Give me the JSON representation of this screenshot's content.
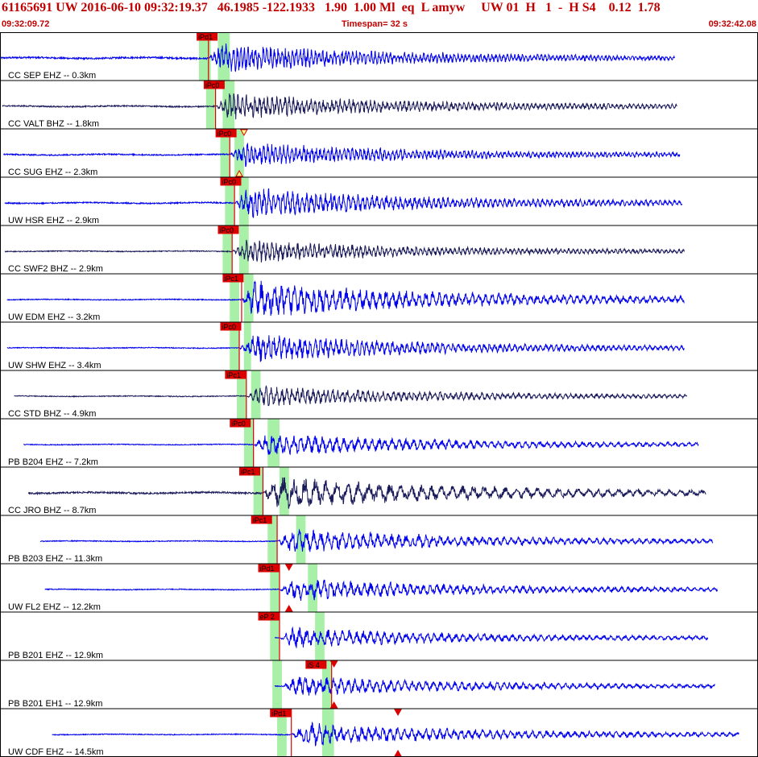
{
  "header": {
    "title": "61165691 UW 2016-06-10 09:32:19.37   46.1985 -122.1933   1.90  1.00 Ml  eq  L amyw     UW 01  H   1  -  H S4    0.12  1.78",
    "start_time": "09:32:09.72",
    "timespan": "Timespan=  32 s",
    "end_time": "09:32:42.08"
  },
  "colors": {
    "trace_blue": "#0000ee",
    "trace_dark": "#1a1a5a",
    "pick_red": "#dd0000",
    "window_green": "#a8f0a8"
  },
  "chart_data": {
    "type": "line",
    "title": "",
    "xlabel": "",
    "ylabel": "",
    "xlim": [
      0,
      32
    ],
    "grid": false,
    "legend": "none",
    "traces": [
      {
        "label": "CC SEP EHZ -- 0.3km",
        "color": "blue",
        "start": 0.0,
        "end": 28.5,
        "onset": 8.8,
        "amp": 0.75,
        "pre": 0.04,
        "period": 0.16,
        "green": [
          [
            8.4,
            8.9
          ],
          [
            9.2,
            9.7
          ]
        ],
        "picks": [
          {
            "text": "iPd1",
            "t": 8.8,
            "box": 8.3
          }
        ],
        "markers": []
      },
      {
        "label": "CC VALT BHZ -- 1.8km",
        "color": "dark",
        "start": 0.1,
        "end": 28.6,
        "onset": 9.1,
        "amp": 0.7,
        "pre": 0.03,
        "period": 0.18,
        "green": [
          [
            8.7,
            9.1
          ],
          [
            9.4,
            9.9
          ]
        ],
        "picks": [
          {
            "text": "iPc0",
            "t": 9.1,
            "box": 8.6
          }
        ],
        "markers": []
      },
      {
        "label": "CC SUG EHZ -- 2.3km",
        "color": "blue",
        "start": 0.15,
        "end": 28.7,
        "onset": 9.7,
        "amp": 0.65,
        "pre": 0.03,
        "period": 0.17,
        "green": [
          [
            9.3,
            9.7
          ],
          [
            9.9,
            10.3
          ]
        ],
        "picks": [
          {
            "text": "iPc0",
            "t": 9.7,
            "box": 9.1
          }
        ],
        "markers": [
          {
            "t": 10.3,
            "dir": "down",
            "outline": true
          },
          {
            "t": 10.1,
            "dir": "up",
            "outline": true
          }
        ]
      },
      {
        "label": "UW HSR EHZ -- 2.9km",
        "color": "blue",
        "start": 0.2,
        "end": 28.8,
        "onset": 9.9,
        "amp": 0.8,
        "pre": 0.03,
        "period": 0.2,
        "green": [
          [
            9.5,
            9.9
          ],
          [
            10.1,
            10.5
          ]
        ],
        "picks": [
          {
            "text": "iPc0",
            "t": 9.9,
            "box": 9.3
          }
        ],
        "markers": []
      },
      {
        "label": "CC SWF2 BHZ -- 2.9km",
        "color": "dark",
        "start": 0.2,
        "end": 28.9,
        "onset": 9.8,
        "amp": 0.6,
        "pre": 0.02,
        "period": 0.18,
        "green": [
          [
            9.4,
            9.8
          ],
          [
            10.1,
            10.5
          ]
        ],
        "picks": [
          {
            "text": "iPc0",
            "t": 9.8,
            "box": 9.2
          }
        ],
        "markers": []
      },
      {
        "label": "UW EDM EHZ -- 3.2km",
        "color": "blue",
        "start": 0.3,
        "end": 28.9,
        "onset": 10.2,
        "amp": 1.0,
        "pre": 0.02,
        "period": 0.28,
        "green": [
          [
            9.7,
            10.1
          ],
          [
            10.3,
            10.7
          ]
        ],
        "picks": [
          {
            "text": "iPc1",
            "t": 10.2,
            "box": 9.4
          }
        ],
        "markers": []
      },
      {
        "label": "UW SHW EHZ -- 3.4km",
        "color": "blue",
        "start": 0.3,
        "end": 28.9,
        "onset": 10.1,
        "amp": 0.75,
        "pre": 0.02,
        "period": 0.22,
        "green": [
          [
            9.7,
            10.1
          ],
          [
            10.3,
            10.6
          ]
        ],
        "picks": [
          {
            "text": "iPc0",
            "t": 10.1,
            "box": 9.3
          }
        ],
        "markers": []
      },
      {
        "label": "CC STD BHZ -- 4.9km",
        "color": "dark",
        "start": 0.6,
        "end": 29.0,
        "onset": 10.4,
        "amp": 0.55,
        "pre": 0.02,
        "period": 0.22,
        "green": [
          [
            10.0,
            10.4
          ],
          [
            10.6,
            11.0
          ]
        ],
        "picks": [
          {
            "text": "iPc1",
            "t": 10.4,
            "box": 9.5
          }
        ],
        "markers": []
      },
      {
        "label": "PB B204 EHZ -- 7.2km",
        "color": "blue",
        "start": 1.0,
        "end": 29.5,
        "onset": 10.7,
        "amp": 0.6,
        "pre": 0.02,
        "period": 0.3,
        "green": [
          [
            10.3,
            10.7
          ],
          [
            11.3,
            11.8
          ]
        ],
        "picks": [
          {
            "text": "iPc0",
            "t": 10.7,
            "box": 9.7
          }
        ],
        "markers": []
      },
      {
        "label": "CC JRO BHZ -- 8.7km",
        "color": "dark",
        "start": 1.2,
        "end": 29.8,
        "onset": 11.1,
        "amp": 0.9,
        "pre": 0.04,
        "period": 0.45,
        "green": [
          [
            10.7,
            11.1
          ],
          [
            11.8,
            12.2
          ]
        ],
        "picks": [
          {
            "text": "iPc1",
            "t": 11.1,
            "box": 10.1
          }
        ],
        "markers": []
      },
      {
        "label": "PB B203 EHZ -- 11.3km",
        "color": "blue",
        "start": 1.7,
        "end": 30.1,
        "onset": 11.7,
        "amp": 0.65,
        "pre": 0.02,
        "period": 0.3,
        "green": [
          [
            11.3,
            11.7
          ],
          [
            12.5,
            12.9
          ]
        ],
        "picks": [
          {
            "text": "iPc1",
            "t": 11.7,
            "box": 10.6
          }
        ],
        "markers": []
      },
      {
        "label": "UW FL2 EHZ -- 12.2km",
        "color": "blue",
        "start": 1.9,
        "end": 30.3,
        "onset": 11.8,
        "amp": 0.6,
        "pre": 0.02,
        "period": 0.28,
        "green": [
          [
            11.4,
            11.8
          ],
          [
            13.0,
            13.4
          ]
        ],
        "picks": [
          {
            "text": "iPd1",
            "t": 11.8,
            "box": 10.9
          }
        ],
        "markers": [
          {
            "t": 12.2,
            "dir": "down",
            "outline": false
          },
          {
            "t": 12.2,
            "dir": "up",
            "outline": false
          }
        ]
      },
      {
        "label": "PB B201 EHZ -- 12.9km",
        "color": "blue",
        "start": 11.6,
        "end": 29.9,
        "onset": 11.8,
        "amp": 0.55,
        "pre": 0.02,
        "period": 0.3,
        "green": [
          [
            11.4,
            11.8
          ],
          [
            13.3,
            13.7
          ]
        ],
        "picks": [
          {
            "text": "eP 2",
            "t": 11.8,
            "box": 10.9
          }
        ],
        "markers": []
      },
      {
        "label": "PB B201 EH1 -- 12.9km",
        "color": "blue",
        "start": 11.6,
        "end": 30.2,
        "onset": 11.9,
        "amp": 0.55,
        "pre": 0.02,
        "period": 0.3,
        "green": [
          [
            11.5,
            11.9
          ],
          [
            13.6,
            14.0
          ]
        ],
        "picks": [
          {
            "text": "iS 4",
            "t": 14.0,
            "box": 12.9
          }
        ],
        "markers": [
          {
            "t": 14.1,
            "dir": "down",
            "outline": false
          },
          {
            "t": 14.1,
            "dir": "up",
            "outline": false
          }
        ]
      },
      {
        "label": "UW CDF EHZ -- 14.5km",
        "color": "blue",
        "start": 2.2,
        "end": 31.2,
        "onset": 12.3,
        "amp": 0.6,
        "pre": 0.02,
        "period": 0.3,
        "green": [
          [
            11.7,
            12.1
          ],
          [
            13.6,
            14.1
          ]
        ],
        "picks": [
          {
            "text": "iPd1",
            "t": 12.3,
            "box": 11.4
          }
        ],
        "markers": [
          {
            "t": 16.8,
            "dir": "down",
            "outline": false
          },
          {
            "t": 16.8,
            "dir": "up",
            "outline": false
          }
        ]
      }
    ]
  }
}
